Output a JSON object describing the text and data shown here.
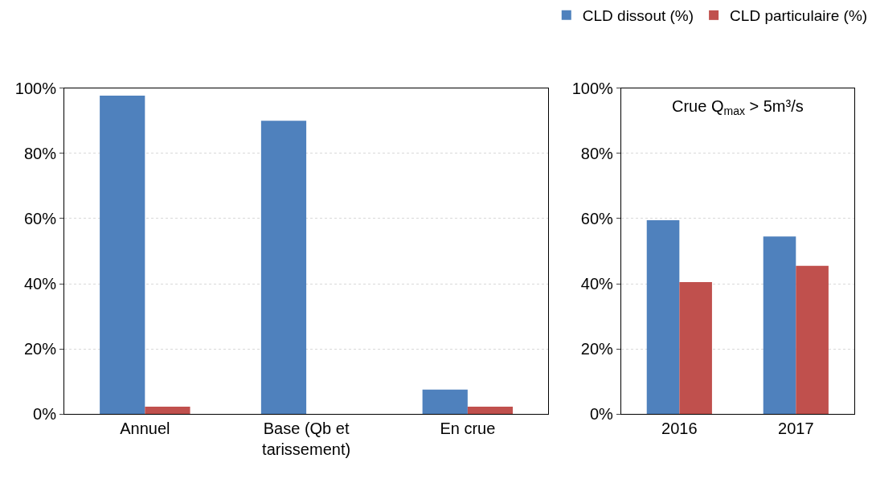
{
  "chart_data": [
    {
      "type": "bar",
      "categories": [
        "Annuel",
        "Base (Qb et tarissement)",
        "En crue"
      ],
      "ylim": [
        0,
        100
      ],
      "yticks": [
        {
          "value": 0,
          "label": "0%"
        },
        {
          "value": 20,
          "label": "20%"
        },
        {
          "value": 40,
          "label": "40%"
        },
        {
          "value": 60,
          "label": "60%"
        },
        {
          "value": 80,
          "label": "80%"
        },
        {
          "value": 100,
          "label": "100%"
        }
      ],
      "grid": "y",
      "legend": "top right",
      "series": [
        {
          "name": "CLD dissout (%)",
          "color": "#4f81bd",
          "values": [
            97.7,
            90,
            7.5
          ]
        },
        {
          "name": "CLD particulaire (%)",
          "color": "#c0504d",
          "values": [
            2.3,
            null,
            2.3
          ]
        }
      ]
    },
    {
      "type": "bar",
      "categories": [
        "2016",
        "2017"
      ],
      "ylim": [
        0,
        100
      ],
      "yticks": [
        {
          "value": 0,
          "label": "0%"
        },
        {
          "value": 20,
          "label": "20%"
        },
        {
          "value": 40,
          "label": "40%"
        },
        {
          "value": 60,
          "label": "60%"
        },
        {
          "value": 80,
          "label": "80%"
        },
        {
          "value": 100,
          "label": "100%"
        }
      ],
      "grid": "y",
      "annotations": [
        "Crue Q$_{max}$ > 5m³/s"
      ],
      "series": [
        {
          "color": "#4f81bd",
          "values": [
            59.5,
            54.5
          ]
        },
        {
          "color": "#c0504d",
          "values": [
            40.5,
            45.5
          ]
        }
      ]
    }
  ]
}
